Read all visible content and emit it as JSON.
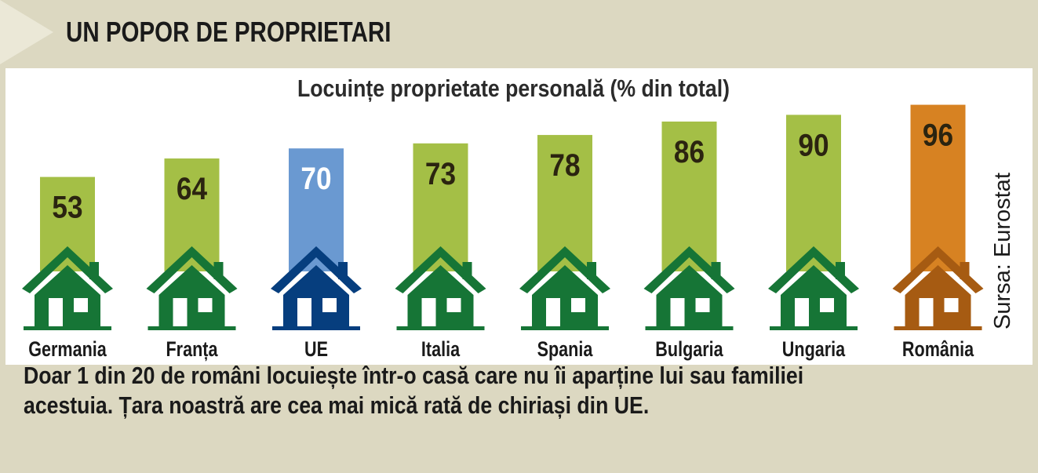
{
  "header": {
    "title": "UN POPOR DE PROPRIETARI"
  },
  "source": "Sursa: Eurostat",
  "caption": {
    "line1": "Doar 1 din 20 de români locuiește într-o casă care nu îi aparține lui sau familiei",
    "line2": "acestuia. Țara noastră are cea mai mică rată de chiriași din UE."
  },
  "colors": {
    "bar_default": "#a4bf46",
    "house_default": "#167536",
    "bar_eu": "#6a99d1",
    "house_eu": "#063e7e",
    "bar_highlight": "#d78222",
    "house_highlight": "#a65b12"
  },
  "chart_data": {
    "type": "bar",
    "title": "Locuințe proprietate personală (% din total)",
    "xlabel": "",
    "ylabel": "",
    "ylim": [
      0,
      100
    ],
    "grid": false,
    "categories": [
      "Germania",
      "Franța",
      "UE",
      "Italia",
      "Spania",
      "Bulgaria",
      "Ungaria",
      "România"
    ],
    "values": [
      53,
      64,
      70,
      73,
      78,
      86,
      90,
      96
    ],
    "highlight": {
      "UE": "eu",
      "România": "highlight"
    }
  }
}
